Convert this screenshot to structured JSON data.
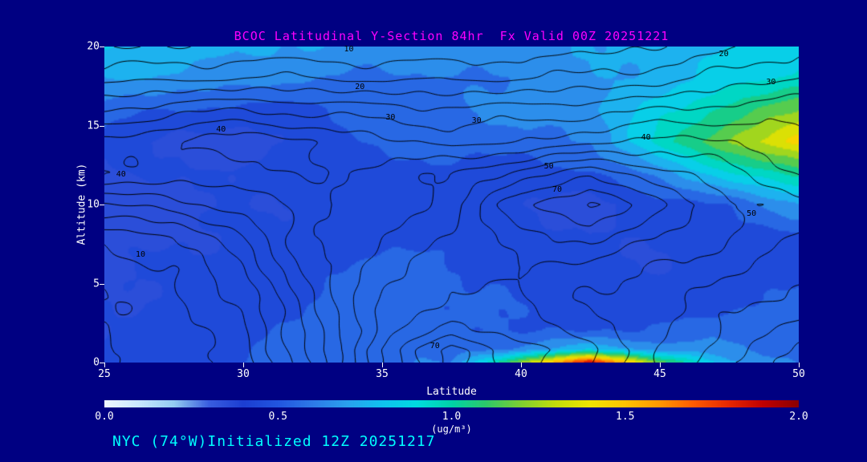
{
  "page": {
    "background": "#000082",
    "title_color": "#ff00ff",
    "footer": "NYC (74°W)Initialized 12Z 20251217",
    "footer_color": "#00ffff"
  },
  "chart_data": {
    "type": "heatmap",
    "title": "BCOC Latitudinal Y-Section 84hr  Fx Valid 00Z 20251221",
    "xlabel": "Latitude",
    "ylabel": "Altitude (km)",
    "units": "(ug/m³)",
    "xlim": [
      25,
      50
    ],
    "ylim": [
      0,
      20
    ],
    "xticks": [
      25,
      30,
      35,
      40,
      45,
      50
    ],
    "yticks": [
      0,
      5,
      10,
      15,
      20
    ],
    "lat": [
      25,
      27.5,
      30,
      32.5,
      35,
      37.5,
      40,
      42.5,
      45,
      47.5,
      50
    ],
    "alt": [
      0,
      0.8,
      2,
      4,
      6,
      8,
      10,
      12,
      14,
      16,
      18,
      20
    ],
    "fill_values_ugm3": [
      [
        0.42,
        0.45,
        0.5,
        0.55,
        0.58,
        0.6,
        1.2,
        1.85,
        1.15,
        0.7,
        0.6
      ],
      [
        0.41,
        0.44,
        0.49,
        0.53,
        0.56,
        0.54,
        0.62,
        0.78,
        0.66,
        0.6,
        0.57
      ],
      [
        0.4,
        0.44,
        0.48,
        0.52,
        0.55,
        0.52,
        0.5,
        0.48,
        0.52,
        0.56,
        0.6
      ],
      [
        0.4,
        0.42,
        0.46,
        0.5,
        0.56,
        0.52,
        0.48,
        0.44,
        0.42,
        0.46,
        0.52
      ],
      [
        0.38,
        0.42,
        0.45,
        0.48,
        0.55,
        0.5,
        0.45,
        0.42,
        0.4,
        0.42,
        0.46
      ],
      [
        0.35,
        0.38,
        0.42,
        0.44,
        0.46,
        0.45,
        0.42,
        0.4,
        0.42,
        0.44,
        0.48
      ],
      [
        0.32,
        0.36,
        0.4,
        0.42,
        0.44,
        0.42,
        0.4,
        0.36,
        0.44,
        0.52,
        0.68
      ],
      [
        0.38,
        0.42,
        0.42,
        0.44,
        0.46,
        0.46,
        0.44,
        0.48,
        0.65,
        0.88,
        1.05
      ],
      [
        0.45,
        0.36,
        0.34,
        0.45,
        0.52,
        0.55,
        0.56,
        0.6,
        0.95,
        1.2,
        1.45
      ],
      [
        0.55,
        0.5,
        0.46,
        0.48,
        0.55,
        0.6,
        0.62,
        0.68,
        0.85,
        1.05,
        1.18
      ],
      [
        0.7,
        0.68,
        0.64,
        0.6,
        0.58,
        0.58,
        0.62,
        0.68,
        0.74,
        0.84,
        0.95
      ],
      [
        0.8,
        0.76,
        0.72,
        0.7,
        0.67,
        0.65,
        0.67,
        0.7,
        0.75,
        0.8,
        0.85
      ]
    ],
    "contour_values": [
      [
        0.04,
        0.08,
        0.12,
        0.3,
        0.55,
        0.72,
        0.62,
        0.55,
        0.45,
        0.35,
        0.28
      ],
      [
        0.04,
        0.08,
        0.13,
        0.31,
        0.56,
        0.72,
        0.63,
        0.56,
        0.46,
        0.36,
        0.3
      ],
      [
        0.05,
        0.08,
        0.14,
        0.32,
        0.52,
        0.62,
        0.58,
        0.52,
        0.46,
        0.38,
        0.33
      ],
      [
        0.05,
        0.09,
        0.16,
        0.35,
        0.5,
        0.56,
        0.55,
        0.5,
        0.47,
        0.42,
        0.38
      ],
      [
        0.07,
        0.1,
        0.2,
        0.38,
        0.48,
        0.52,
        0.55,
        0.52,
        0.5,
        0.46,
        0.42
      ],
      [
        0.12,
        0.15,
        0.25,
        0.4,
        0.45,
        0.5,
        0.58,
        0.62,
        0.55,
        0.5,
        0.45
      ],
      [
        0.25,
        0.28,
        0.32,
        0.38,
        0.42,
        0.48,
        0.64,
        0.72,
        0.6,
        0.52,
        0.46
      ],
      [
        0.4,
        0.38,
        0.38,
        0.4,
        0.42,
        0.45,
        0.52,
        0.58,
        0.52,
        0.46,
        0.4
      ],
      [
        0.36,
        0.4,
        0.44,
        0.4,
        0.36,
        0.33,
        0.35,
        0.38,
        0.42,
        0.4,
        0.35
      ],
      [
        0.25,
        0.28,
        0.3,
        0.28,
        0.27,
        0.26,
        0.27,
        0.28,
        0.3,
        0.32,
        0.33
      ],
      [
        0.13,
        0.14,
        0.15,
        0.15,
        0.14,
        0.14,
        0.15,
        0.16,
        0.18,
        0.22,
        0.26
      ],
      [
        0.05,
        0.05,
        0.06,
        0.06,
        0.06,
        0.06,
        0.07,
        0.08,
        0.1,
        0.14,
        0.18
      ]
    ],
    "contour_levels": [
      0.05,
      0.1,
      0.15,
      0.2,
      0.25,
      0.3,
      0.35,
      0.4,
      0.45,
      0.5,
      0.55,
      0.6,
      0.65,
      0.7,
      0.75
    ],
    "contour_labels": [
      {
        "text": "10",
        "lat": 33.8,
        "alt": 19.8
      },
      {
        "text": "20",
        "lat": 34.2,
        "alt": 17.4
      },
      {
        "text": "30",
        "lat": 35.3,
        "alt": 15.5
      },
      {
        "text": "30",
        "lat": 38.4,
        "alt": 15.3
      },
      {
        "text": "40",
        "lat": 29.2,
        "alt": 14.7
      },
      {
        "text": "20",
        "lat": 47.3,
        "alt": 19.5
      },
      {
        "text": "30",
        "lat": 49.0,
        "alt": 17.7
      },
      {
        "text": "40",
        "lat": 44.5,
        "alt": 14.2
      },
      {
        "text": "50",
        "lat": 41.0,
        "alt": 12.4
      },
      {
        "text": "70",
        "lat": 41.3,
        "alt": 10.9
      },
      {
        "text": "50",
        "lat": 48.3,
        "alt": 9.4
      },
      {
        "text": "40",
        "lat": 25.6,
        "alt": 11.9
      },
      {
        "text": "10",
        "lat": 26.3,
        "alt": 6.8
      },
      {
        "text": "70",
        "lat": 36.9,
        "alt": 1.0
      }
    ],
    "colormap": {
      "min": 0,
      "max": 2,
      "step": 0.1,
      "colors": [
        "#f0f8ff",
        "#c8e8ff",
        "#94ccf2",
        "#3a5ee0",
        "#1c3ed2",
        "#2256e0",
        "#2e7ae8",
        "#2aa2ee",
        "#10c2f0",
        "#00dce0",
        "#00d2a8",
        "#2ec86a",
        "#7ed032",
        "#c4dc0a",
        "#f2e400",
        "#ffc400",
        "#ff9800",
        "#ff5a00",
        "#e62800",
        "#c00000",
        "#8c0000"
      ]
    },
    "colorbar": {
      "ticks": [
        "0.0",
        "0.5",
        "1.0",
        "1.5",
        "2.0"
      ]
    }
  }
}
